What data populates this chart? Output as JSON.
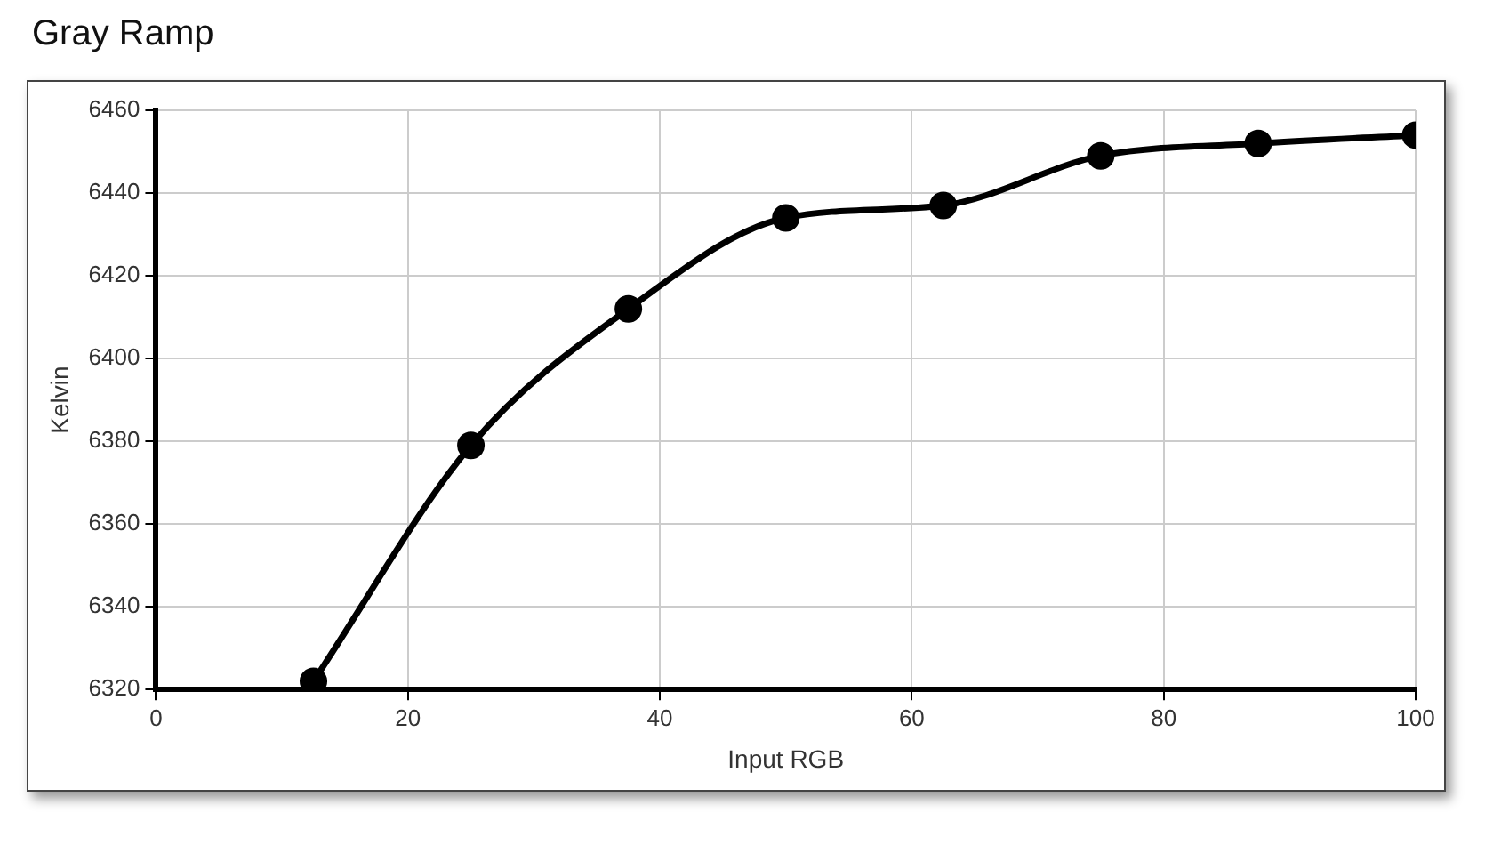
{
  "chart_data": {
    "type": "line",
    "title": "Gray Ramp",
    "xlabel": "Input RGB",
    "ylabel": "Kelvin",
    "x": [
      12.5,
      25,
      37.5,
      50,
      62.5,
      75,
      87.5,
      100
    ],
    "series": [
      {
        "color": "#000000",
        "values": [
          6322,
          6379,
          6412,
          6434,
          6437,
          6449,
          6452,
          6454
        ]
      }
    ],
    "xlim": [
      0,
      100
    ],
    "xticks": [
      0,
      20,
      40,
      60,
      80,
      100
    ],
    "ylim": [
      6320,
      6460
    ],
    "yticks": [
      6320,
      6340,
      6360,
      6380,
      6400,
      6420,
      6440,
      6460
    ],
    "grid": true,
    "marker": "circle",
    "line_style": "solid"
  }
}
